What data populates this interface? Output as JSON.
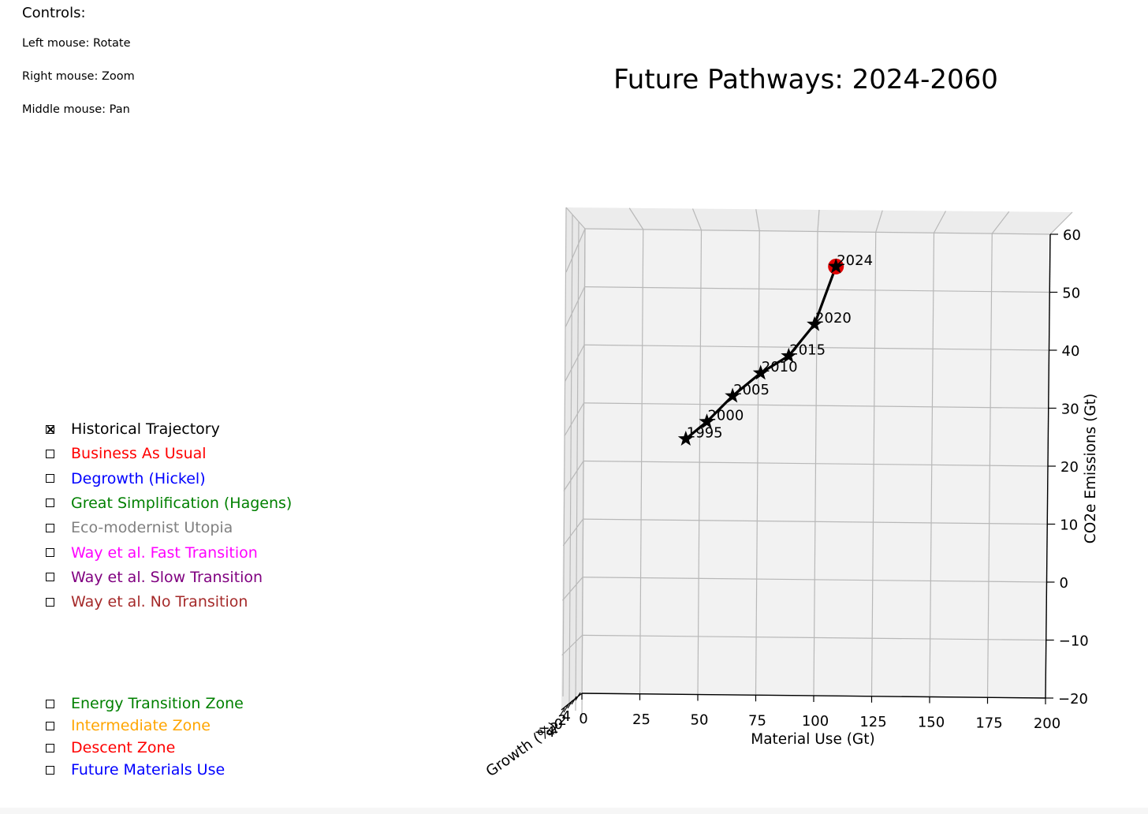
{
  "controls": {
    "title": "Controls:",
    "left_mouse": "Left mouse: Rotate",
    "right_mouse": "Right mouse: Zoom",
    "middle_mouse": "Middle mouse: Pan"
  },
  "scenarios": [
    {
      "label": "Historical Trajectory",
      "checked": true,
      "color": "#000000"
    },
    {
      "label": "Business As Usual",
      "checked": false,
      "color": "#ff0000"
    },
    {
      "label": "Degrowth (Hickel)",
      "checked": false,
      "color": "#0000ff"
    },
    {
      "label": "Great Simplification (Hagens)",
      "checked": false,
      "color": "#008000"
    },
    {
      "label": "Eco-modernist Utopia",
      "checked": false,
      "color": "#808080"
    },
    {
      "label": "Way et al. Fast Transition",
      "checked": false,
      "color": "#ff00ff"
    },
    {
      "label": "Way et al. Slow Transition",
      "checked": false,
      "color": "#800080"
    },
    {
      "label": "Way et al. No Transition",
      "checked": false,
      "color": "#a52a2a"
    }
  ],
  "zones": [
    {
      "label": "Energy Transition Zone",
      "checked": false,
      "color": "#008000"
    },
    {
      "label": "Intermediate Zone",
      "checked": false,
      "color": "#ffa500"
    },
    {
      "label": "Descent Zone",
      "checked": false,
      "color": "#ff0000"
    },
    {
      "label": "Future Materials Use",
      "checked": false,
      "color": "#0000ff"
    }
  ],
  "chart_data": {
    "type": "line",
    "title": "Future Pathways: 2024-2060",
    "xlabel": "Material Use (Gt)",
    "ylabel": "CO2e Emissions (Gt)",
    "zlabel": "Growth (%)",
    "xlim": [
      0,
      200
    ],
    "ylim": [
      -20,
      60
    ],
    "x_ticks": [
      "0",
      "25",
      "50",
      "75",
      "100",
      "125",
      "150",
      "175",
      "200"
    ],
    "y_ticks": [
      "−20",
      "−10",
      "0",
      "10",
      "20",
      "30",
      "40",
      "50",
      "60"
    ],
    "z_ticks": [
      "4",
      "2",
      "0",
      "−2",
      "−4"
    ],
    "grid": true,
    "series": [
      {
        "name": "Historical Trajectory",
        "color": "#000000",
        "marker": "star",
        "points": [
          {
            "year": "1995",
            "x": 44,
            "y": 24
          },
          {
            "year": "2000",
            "x": 53,
            "y": 27
          },
          {
            "year": "2005",
            "x": 64,
            "y": 31.5
          },
          {
            "year": "2010",
            "x": 76,
            "y": 35.5
          },
          {
            "year": "2015",
            "x": 88,
            "y": 38.5
          },
          {
            "year": "2020",
            "x": 99,
            "y": 44
          },
          {
            "year": "2024",
            "x": 108,
            "y": 54
          }
        ]
      }
    ],
    "current_marker": {
      "year": "2024",
      "color": "#e00000"
    }
  }
}
